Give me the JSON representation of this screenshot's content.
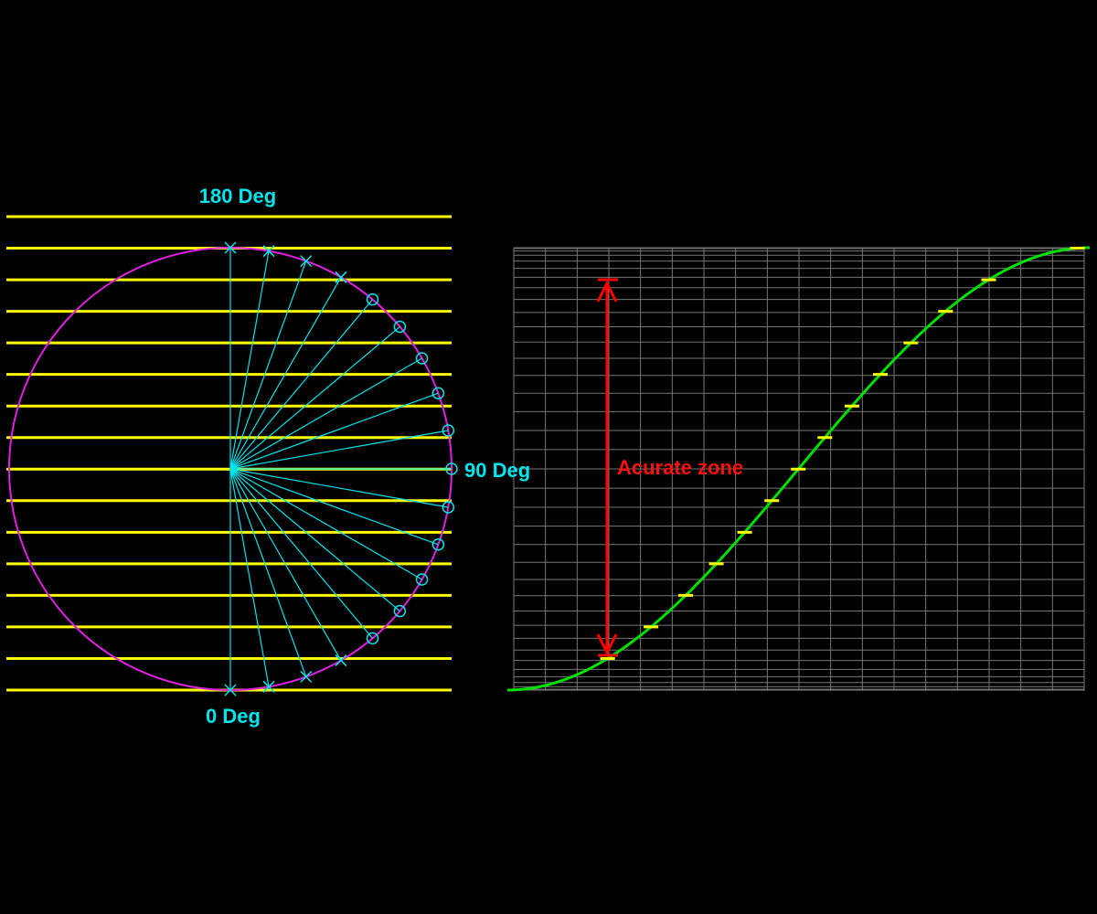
{
  "labels": {
    "top": "180 Deg",
    "right": "90 Deg",
    "bottom": "0 Deg",
    "zone": "Acurate zone"
  }
}
